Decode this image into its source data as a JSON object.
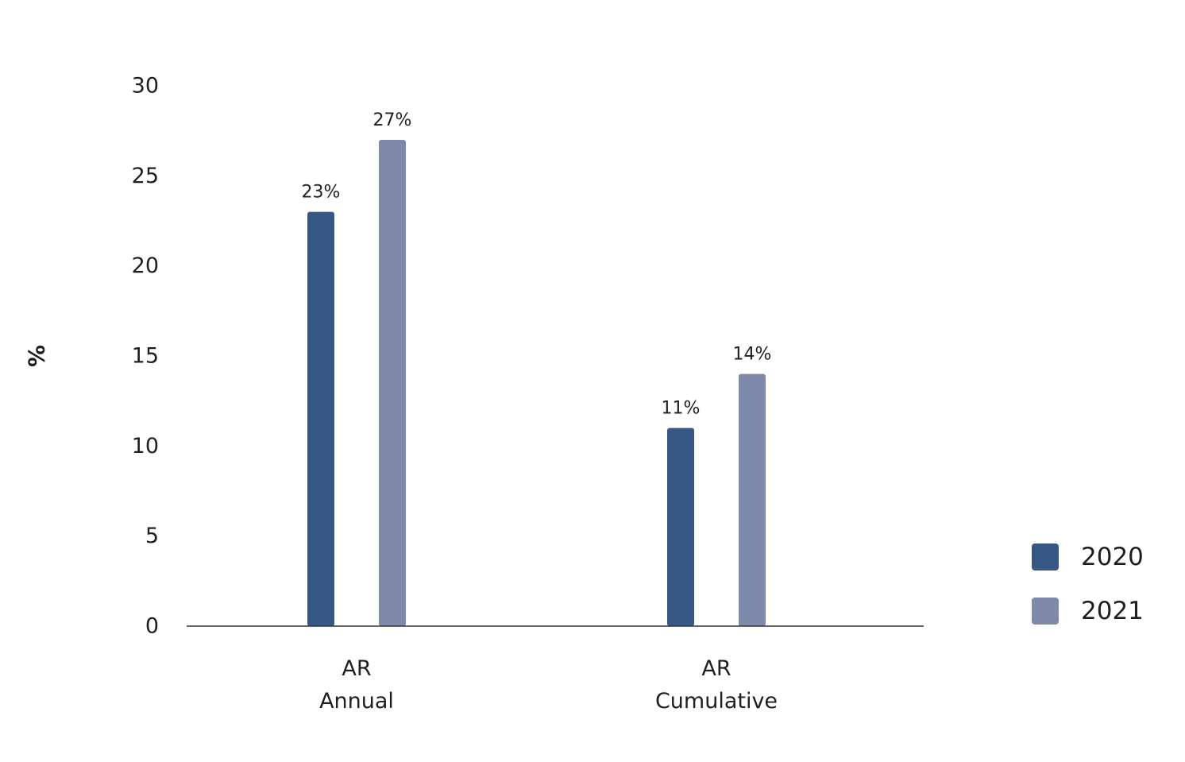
{
  "chart_data": {
    "type": "bar",
    "title": "",
    "xlabel": "",
    "ylabel": "%",
    "ylim": [
      0,
      30
    ],
    "yticks": [
      0,
      5,
      10,
      15,
      20,
      25,
      30
    ],
    "categories": [
      {
        "line1": "AR",
        "line2": "Annual"
      },
      {
        "line1": "AR",
        "line2": "Cumulative"
      }
    ],
    "series": [
      {
        "name": "2020",
        "color": "#375885",
        "values": [
          23,
          11
        ],
        "labels": [
          "23%",
          "11%"
        ]
      },
      {
        "name": "2021",
        "color": "#7f8aab",
        "values": [
          27,
          14
        ],
        "labels": [
          "27%",
          "14%"
        ]
      }
    ],
    "grid": false,
    "legend": "bottom-right"
  }
}
